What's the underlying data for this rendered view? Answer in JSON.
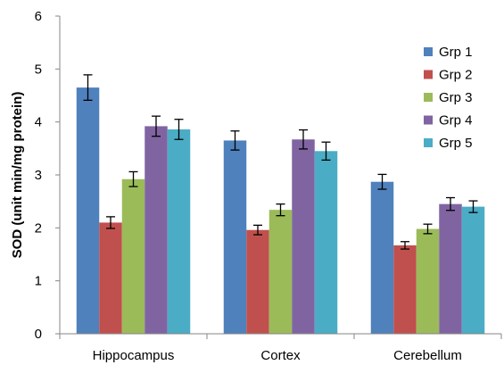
{
  "chart_data": {
    "type": "bar",
    "title": "",
    "xlabel": "",
    "ylabel": "SOD (unit min/mg protein)",
    "ylim": [
      0,
      6
    ],
    "yticks": [
      0,
      1,
      2,
      3,
      4,
      5,
      6
    ],
    "grid": false,
    "legend_position": "right",
    "categories": [
      "Hippocampus",
      "Cortex",
      "Cerebellum"
    ],
    "series": [
      {
        "name": "Grp 1",
        "color": "#4f81bd",
        "values": [
          4.65,
          3.65,
          2.87
        ],
        "errors": [
          0.24,
          0.18,
          0.14
        ]
      },
      {
        "name": "Grp 2",
        "color": "#c0504d",
        "values": [
          2.1,
          1.96,
          1.67
        ],
        "errors": [
          0.11,
          0.09,
          0.07
        ]
      },
      {
        "name": "Grp 3",
        "color": "#9bbb59",
        "values": [
          2.92,
          2.34,
          1.98
        ],
        "errors": [
          0.14,
          0.11,
          0.09
        ]
      },
      {
        "name": "Grp 4",
        "color": "#8064a2",
        "values": [
          3.92,
          3.67,
          2.45
        ],
        "errors": [
          0.19,
          0.18,
          0.12
        ]
      },
      {
        "name": "Grp 5",
        "color": "#4bacc6",
        "values": [
          3.86,
          3.45,
          2.4
        ],
        "errors": [
          0.19,
          0.17,
          0.11
        ]
      }
    ]
  }
}
